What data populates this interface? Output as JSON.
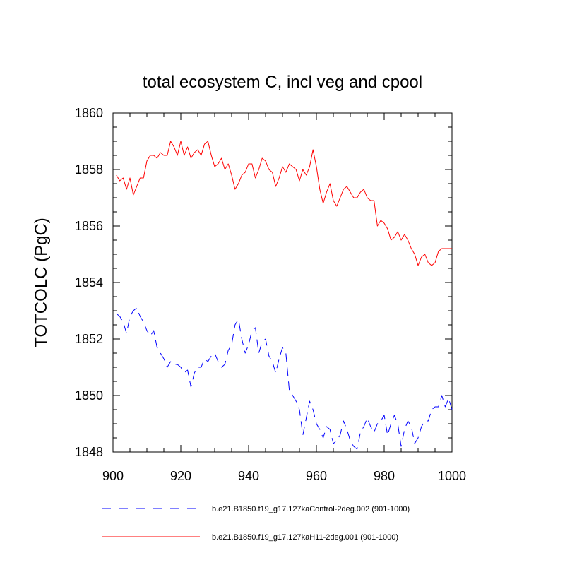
{
  "chart_data": {
    "type": "line",
    "title": "total ecosystem C, incl veg and cpool",
    "xlabel": "",
    "ylabel": "TOTCOLC  (PgC)",
    "xlim": [
      900,
      1000
    ],
    "ylim": [
      1848,
      1860
    ],
    "xticks": [
      900,
      920,
      940,
      960,
      980,
      1000
    ],
    "yticks": [
      1848,
      1850,
      1852,
      1854,
      1856,
      1858,
      1860
    ],
    "grid": false,
    "legend_position": "bottom",
    "series": [
      {
        "name": "b.e21.B1850.f19_g17.127kaControl-2deg.002 (901-1000)",
        "color": "#0000ff",
        "style": "dashed",
        "x": [
          901,
          902,
          903,
          904,
          905,
          906,
          907,
          908,
          909,
          910,
          911,
          912,
          913,
          914,
          915,
          916,
          917,
          918,
          919,
          920,
          921,
          922,
          923,
          924,
          925,
          926,
          927,
          928,
          929,
          930,
          931,
          932,
          933,
          934,
          935,
          936,
          937,
          938,
          939,
          940,
          941,
          942,
          943,
          944,
          945,
          946,
          947,
          948,
          949,
          950,
          951,
          952,
          953,
          954,
          955,
          956,
          957,
          958,
          959,
          960,
          961,
          962,
          963,
          964,
          965,
          966,
          967,
          968,
          969,
          970,
          971,
          972,
          973,
          974,
          975,
          976,
          977,
          978,
          979,
          980,
          981,
          982,
          983,
          984,
          985,
          986,
          987,
          988,
          989,
          990,
          991,
          992,
          993,
          994,
          995,
          996,
          997,
          998,
          999,
          1000
        ],
        "y": [
          1852.9,
          1852.8,
          1852.6,
          1852.2,
          1852.8,
          1853.0,
          1853.1,
          1852.8,
          1852.6,
          1852.3,
          1852.1,
          1852.3,
          1851.7,
          1851.5,
          1851.3,
          1851.0,
          1851.2,
          1851.1,
          1851.1,
          1851.0,
          1850.8,
          1850.9,
          1850.3,
          1850.8,
          1851.0,
          1851.0,
          1851.3,
          1851.2,
          1851.4,
          1851.5,
          1851.2,
          1851.0,
          1851.1,
          1851.6,
          1851.8,
          1852.5,
          1852.7,
          1852.0,
          1851.5,
          1851.8,
          1852.3,
          1852.4,
          1851.5,
          1851.9,
          1852.0,
          1851.4,
          1851.2,
          1850.8,
          1851.3,
          1851.7,
          1851.5,
          1850.2,
          1850.0,
          1849.8,
          1849.5,
          1848.6,
          1849.2,
          1849.8,
          1849.5,
          1849.0,
          1848.8,
          1848.5,
          1848.9,
          1848.8,
          1848.3,
          1848.4,
          1848.6,
          1849.1,
          1848.8,
          1848.4,
          1848.2,
          1848.1,
          1848.7,
          1848.9,
          1849.2,
          1848.9,
          1848.7,
          1849.0,
          1849.1,
          1849.3,
          1848.6,
          1849.0,
          1849.3,
          1849.0,
          1848.2,
          1848.8,
          1849.1,
          1848.9,
          1848.3,
          1848.5,
          1848.9,
          1849.1,
          1849.1,
          1849.5,
          1849.6,
          1849.6,
          1850.0,
          1849.6,
          1849.9,
          1849.5
        ]
      },
      {
        "name": "b.e21.B1850.f19_g17.127kaH11-2deg.001 (901-1000)",
        "color": "#ff0000",
        "style": "solid",
        "x": [
          901,
          902,
          903,
          904,
          905,
          906,
          907,
          908,
          909,
          910,
          911,
          912,
          913,
          914,
          915,
          916,
          917,
          918,
          919,
          920,
          921,
          922,
          923,
          924,
          925,
          926,
          927,
          928,
          929,
          930,
          931,
          932,
          933,
          934,
          935,
          936,
          937,
          938,
          939,
          940,
          941,
          942,
          943,
          944,
          945,
          946,
          947,
          948,
          949,
          950,
          951,
          952,
          953,
          954,
          955,
          956,
          957,
          958,
          959,
          960,
          961,
          962,
          963,
          964,
          965,
          966,
          967,
          968,
          969,
          970,
          971,
          972,
          973,
          974,
          975,
          976,
          977,
          978,
          979,
          980,
          981,
          982,
          983,
          984,
          985,
          986,
          987,
          988,
          989,
          990,
          991,
          992,
          993,
          994,
          995,
          996,
          997,
          998,
          999,
          1000
        ],
        "y": [
          1857.8,
          1857.6,
          1857.7,
          1857.3,
          1857.7,
          1857.1,
          1857.4,
          1857.7,
          1857.7,
          1858.3,
          1858.5,
          1858.5,
          1858.4,
          1858.6,
          1858.5,
          1858.5,
          1859.0,
          1858.8,
          1858.5,
          1859.0,
          1858.5,
          1858.8,
          1858.4,
          1858.6,
          1858.7,
          1858.5,
          1858.9,
          1859.0,
          1858.5,
          1858.1,
          1858.2,
          1858.4,
          1858.0,
          1858.2,
          1857.8,
          1857.3,
          1857.5,
          1857.8,
          1857.9,
          1858.2,
          1858.2,
          1857.7,
          1858.0,
          1858.4,
          1858.3,
          1858.0,
          1857.9,
          1857.4,
          1857.7,
          1858.1,
          1857.9,
          1858.2,
          1858.1,
          1858.0,
          1857.6,
          1858.0,
          1857.8,
          1858.1,
          1858.7,
          1858.1,
          1857.3,
          1856.8,
          1857.2,
          1857.5,
          1856.9,
          1856.7,
          1857.0,
          1857.3,
          1857.4,
          1857.2,
          1857.0,
          1857.0,
          1857.2,
          1857.3,
          1857.0,
          1856.9,
          1856.9,
          1856.0,
          1856.2,
          1856.1,
          1855.9,
          1855.5,
          1855.6,
          1855.8,
          1855.5,
          1855.7,
          1855.5,
          1855.2,
          1855.0,
          1854.6,
          1854.9,
          1855.0,
          1854.7,
          1854.6,
          1854.7,
          1855.1,
          1855.2,
          1855.2,
          1855.2,
          1855.2
        ]
      }
    ]
  }
}
